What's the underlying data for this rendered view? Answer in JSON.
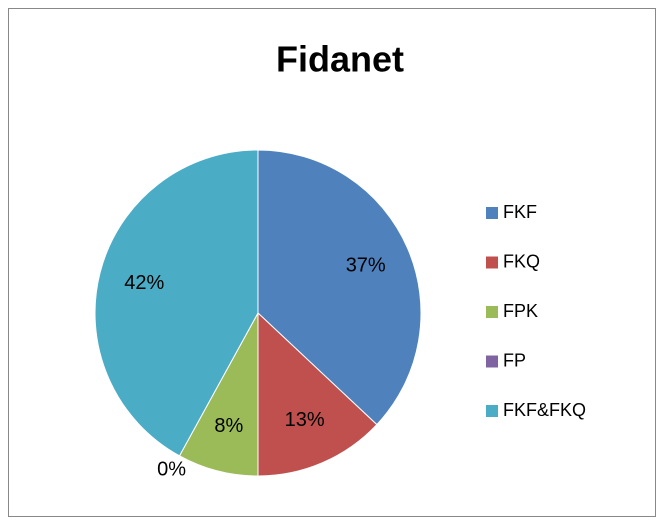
{
  "chart_data": {
    "type": "pie",
    "title": "Fidanet",
    "categories": [
      "FKF",
      "FKQ",
      "FPK",
      "FP",
      "FKF&FKQ"
    ],
    "values": [
      37,
      13,
      8,
      0,
      42
    ],
    "value_labels": [
      "37%",
      "13%",
      "8%",
      "0%",
      "42%"
    ],
    "colors": [
      "#4F81BD",
      "#C0504D",
      "#9BBB59",
      "#8064A2",
      "#4BACC6"
    ],
    "legend": "right"
  }
}
